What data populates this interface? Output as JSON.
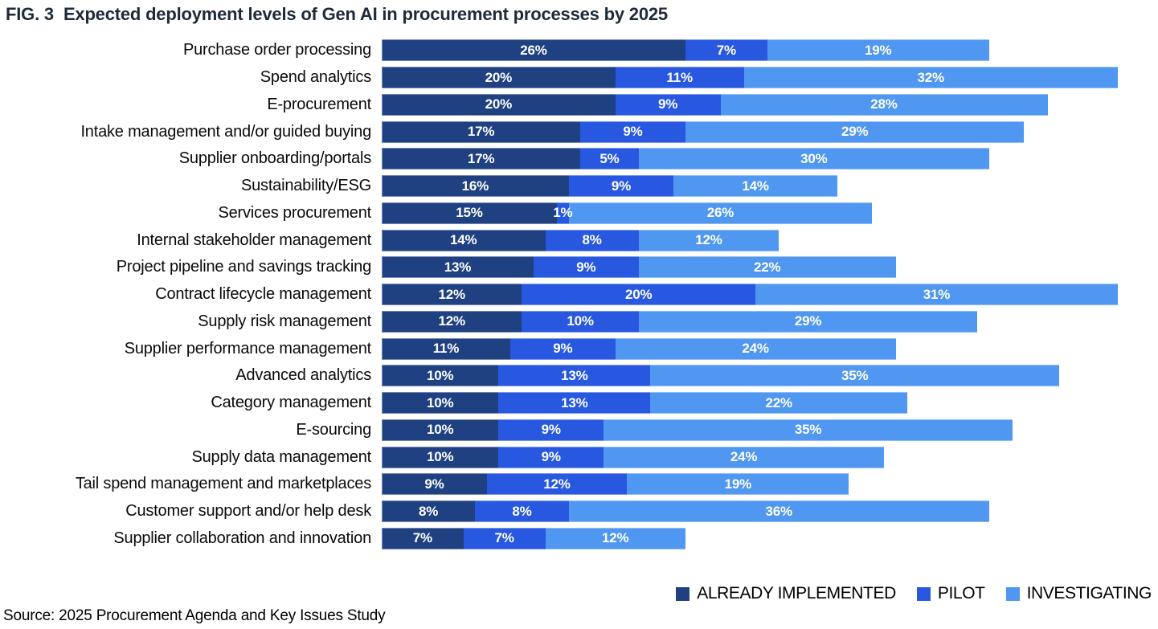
{
  "figure": {
    "fig_label": "FIG. 3",
    "title": "Expected deployment levels of Gen AI in procurement processes by 2025",
    "source": "Source: 2025 Procurement Agenda and Key Issues Study"
  },
  "colors": {
    "already_implemented": "#1f4181",
    "pilot": "#2858e0",
    "investigating": "#4f97f0"
  },
  "legend": [
    {
      "label": "ALREADY IMPLEMENTED",
      "color": "#1f4181"
    },
    {
      "label": "PILOT",
      "color": "#2858e0"
    },
    {
      "label": "INVESTIGATING",
      "color": "#4f97f0"
    }
  ],
  "chart_data": {
    "type": "bar",
    "orientation": "horizontal",
    "stacked": true,
    "unit": "%",
    "value_suffix": "%",
    "axis_max_percent": 65.7,
    "grid": false,
    "legend_position": "bottom-right",
    "title": "Expected deployment levels of Gen AI in procurement processes by 2025",
    "categories": [
      "Purchase order processing",
      "Spend analytics",
      "E-procurement",
      "Intake management and/or guided buying",
      "Supplier onboarding/portals",
      "Sustainability/ESG",
      "Services procurement",
      "Internal stakeholder management",
      "Project pipeline and savings tracking",
      "Contract lifecycle management",
      "Supply risk management",
      "Supplier performance management",
      "Advanced analytics",
      "Category management",
      "E-sourcing",
      "Supply data management",
      "Tail spend management and marketplaces",
      "Customer support and/or help desk",
      "Supplier collaboration and innovation"
    ],
    "series": [
      {
        "name": "ALREADY IMPLEMENTED",
        "color": "#1f4181",
        "values": [
          26,
          20,
          20,
          17,
          17,
          16,
          15,
          14,
          13,
          12,
          12,
          11,
          10,
          10,
          10,
          10,
          9,
          8,
          7
        ]
      },
      {
        "name": "PILOT",
        "color": "#2858e0",
        "values": [
          7,
          11,
          9,
          9,
          5,
          9,
          1,
          8,
          9,
          20,
          10,
          9,
          13,
          13,
          9,
          9,
          12,
          8,
          7
        ]
      },
      {
        "name": "INVESTIGATING",
        "color": "#4f97f0",
        "values": [
          19,
          32,
          28,
          29,
          30,
          14,
          26,
          12,
          22,
          31,
          29,
          24,
          35,
          22,
          35,
          24,
          19,
          36,
          12
        ]
      }
    ]
  }
}
